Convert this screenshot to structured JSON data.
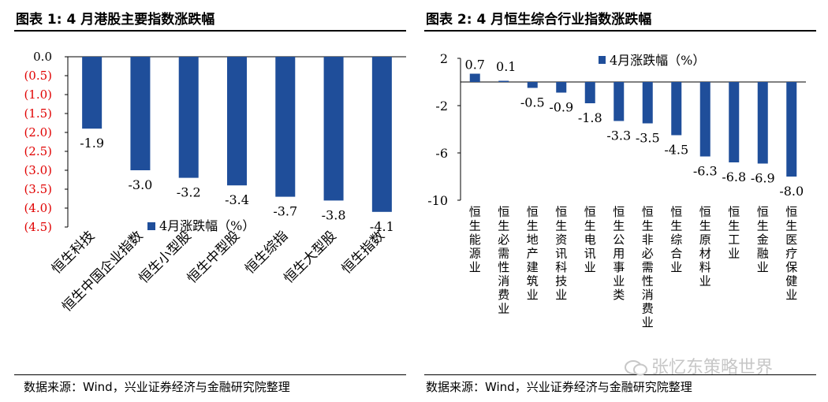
{
  "figure1": {
    "title": "图表 1:  4 月港股主要指数涨跌幅",
    "source": "数据来源：Wind，兴业证券经济与金融研究院整理"
  },
  "figure2": {
    "title": "图表 2:  4 月恒生综合行业指数涨跌幅",
    "source": "数据来源：Wind，兴业证券经济与金融研究院整理"
  },
  "watermark": {
    "text": "张忆东策略世界"
  },
  "colors": {
    "bar": "#1F4E9A",
    "negative_tick": "#E00000",
    "axis": "#000000"
  },
  "chart_data": [
    {
      "type": "bar",
      "title": "4 月港股主要指数涨跌幅",
      "categories": [
        "恒生科技",
        "恒生中国企业指数",
        "恒生小型股",
        "恒生中型股",
        "恒生综指",
        "恒生大型股",
        "恒生指数"
      ],
      "series": [
        {
          "name": "4月涨跌幅（%）",
          "values": [
            -1.9,
            -3.0,
            -3.2,
            -3.4,
            -3.7,
            -3.8,
            -4.1
          ]
        }
      ],
      "data_labels": [
        "-1.9",
        "-3.0",
        "-3.2",
        "-3.4",
        "-3.7",
        "-3.8",
        "-4.1"
      ],
      "ylim": [
        -4.5,
        0
      ],
      "yticks": [
        0,
        -0.5,
        -1.0,
        -1.5,
        -2.0,
        -2.5,
        -3.0,
        -3.5,
        -4.0,
        -4.5
      ],
      "ytick_labels": [
        "0.0",
        "(0.5)",
        "(1.0)",
        "(1.5)",
        "(2.0)",
        "(2.5)",
        "(3.0)",
        "(3.5)",
        "(4.0)",
        "(4.5)"
      ],
      "legend": "4月涨跌幅（%）",
      "legend_position": "bottom-left",
      "grid": false
    },
    {
      "type": "bar",
      "title": "4 月恒生综合行业指数涨跌幅",
      "categories": [
        "恒生能源业",
        "恒生必需性消费业",
        "恒生地产建筑业",
        "恒生资讯科技业",
        "恒生电讯业",
        "恒生公用事业类",
        "恒生非必需性消费业",
        "恒生综合业",
        "恒生原材料业",
        "恒生工业",
        "恒生金融业",
        "恒生医疗保健业"
      ],
      "series": [
        {
          "name": "4月涨跌幅（%）",
          "values": [
            0.7,
            0.1,
            -0.5,
            -0.9,
            -1.8,
            -3.3,
            -3.5,
            -4.5,
            -6.3,
            -6.8,
            -6.9,
            -8.0
          ]
        }
      ],
      "data_labels": [
        "0.7",
        "0.1",
        "-0.5",
        "-0.9",
        "-1.8",
        "-3.3",
        "-3.5",
        "-4.5",
        "-6.3",
        "-6.8",
        "-6.9",
        "-8.0"
      ],
      "ylim": [
        -10,
        2
      ],
      "yticks": [
        2,
        -2,
        -6,
        -10
      ],
      "ytick_labels": [
        "2",
        "-2",
        "-6",
        "-10"
      ],
      "legend": "4月涨跌幅（%）",
      "legend_position": "top",
      "grid": false
    }
  ]
}
